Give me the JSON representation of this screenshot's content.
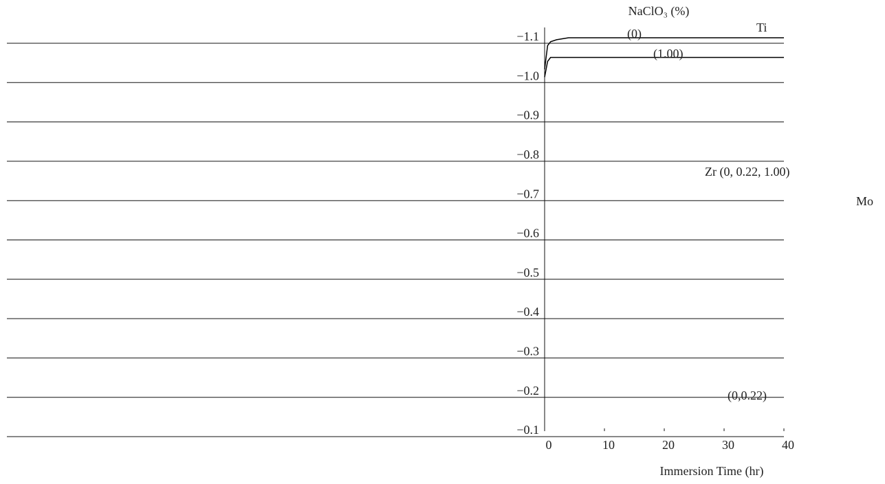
{
  "chart_data": {
    "type": "line",
    "legend_title": "NaClO₃ (%)",
    "x_label": "Immersion Time (hr)",
    "x": [
      0,
      0.5,
      1,
      2,
      4,
      6,
      10,
      15,
      20,
      30,
      40
    ],
    "series": [
      {
        "name": "(0)",
        "color": "#000000",
        "values": [
          -1.02,
          -1.08,
          -1.09,
          -1.095,
          -1.1,
          -1.1,
          -1.1,
          -1.1,
          -1.1,
          -1.1,
          -1.1
        ]
      },
      {
        "name": "(1.00)",
        "color": "#000000",
        "values": [
          -1.0,
          -1.04,
          -1.05,
          -1.05,
          -1.05,
          -1.05,
          -1.05,
          -1.05,
          -1.05,
          -1.05,
          -1.05
        ]
      }
    ],
    "annotations": [
      "Ti",
      "Zr (0, 0.22, 1.00)",
      "Mo",
      "(0,0.22)"
    ],
    "xlim": [
      0,
      40
    ],
    "xticks": [
      0,
      10,
      20,
      30,
      40
    ],
    "ylim": [
      -0.1,
      -1.1
    ],
    "yticks": [
      {
        "value": -1.1,
        "label": "−1.1"
      },
      {
        "value": -1.0,
        "label": "−1.0"
      },
      {
        "value": -0.9,
        "label": "−0.9"
      },
      {
        "value": -0.8,
        "label": "−0.8"
      },
      {
        "value": -0.7,
        "label": "−0.7"
      },
      {
        "value": -0.6,
        "label": "−0.6"
      },
      {
        "value": -0.5,
        "label": "−0.5"
      },
      {
        "value": -0.4,
        "label": "−0.4"
      },
      {
        "value": -0.3,
        "label": "−0.3"
      },
      {
        "value": -0.2,
        "label": "−0.2"
      },
      {
        "value": -0.1,
        "label": "−0.1"
      }
    ],
    "grid": true
  }
}
